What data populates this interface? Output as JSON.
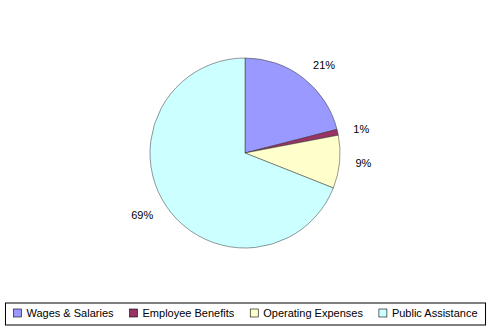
{
  "chart_data": {
    "type": "pie",
    "categories": [
      "Wages & Salaries",
      "Employee Benefits",
      "Operating Expenses",
      "Public Assistance"
    ],
    "values": [
      21,
      1,
      9,
      69
    ],
    "value_labels": [
      "21%",
      "1%",
      "9%",
      "69%"
    ],
    "colors": [
      "#9999ff",
      "#993366",
      "#ffffcc",
      "#ccffff"
    ],
    "data_labels": true,
    "legend": "bottom"
  }
}
